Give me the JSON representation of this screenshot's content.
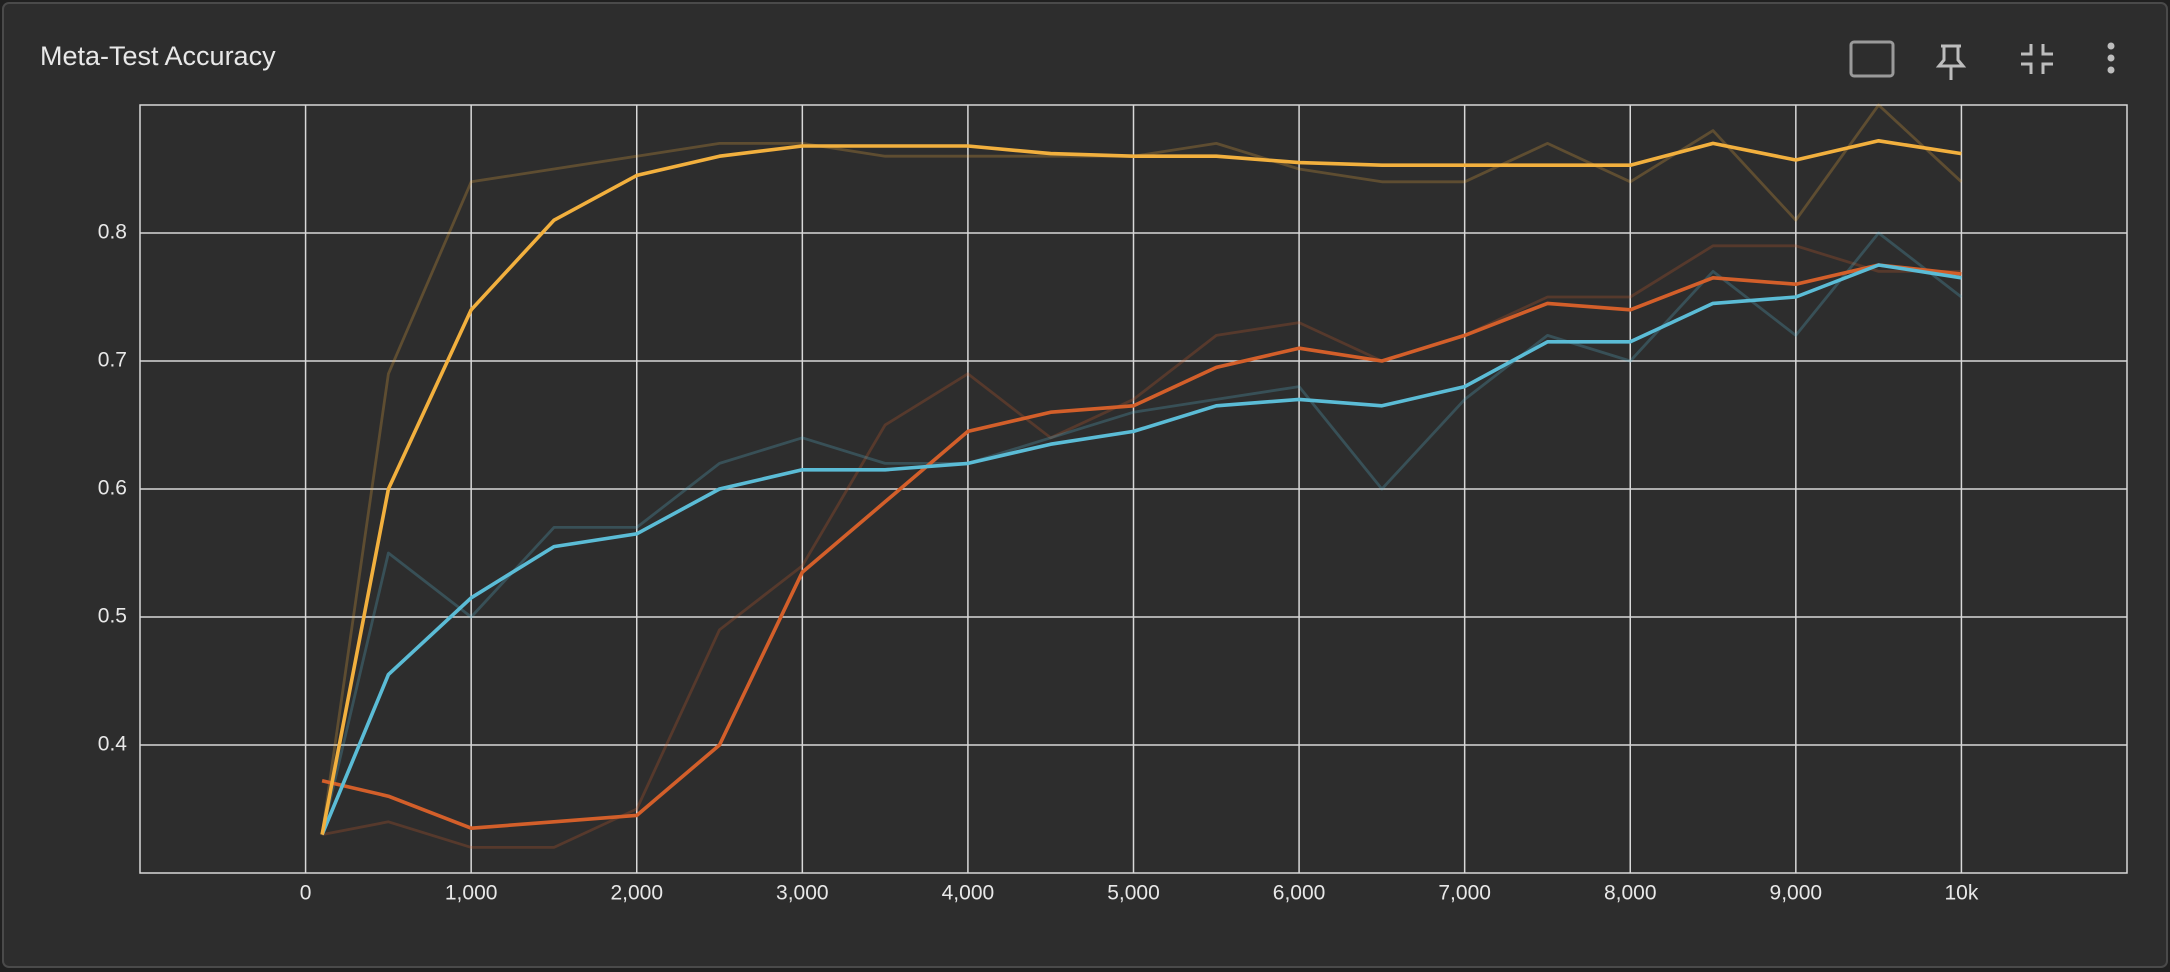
{
  "chart_data": {
    "type": "line",
    "title": "Meta-Test Accuracy",
    "x": [
      100,
      500,
      1000,
      1500,
      2000,
      2500,
      3000,
      3500,
      4000,
      4500,
      5000,
      5500,
      6000,
      6500,
      7000,
      7500,
      8000,
      8500,
      9000,
      9500,
      10000
    ],
    "series": [
      {
        "color": "#f2b03e",
        "opacity": 0.25,
        "values": [
          0.33,
          0.69,
          0.84,
          0.85,
          0.86,
          0.87,
          0.87,
          0.86,
          0.86,
          0.86,
          0.86,
          0.87,
          0.85,
          0.84,
          0.84,
          0.87,
          0.84,
          0.88,
          0.81,
          0.9,
          0.84
        ]
      },
      {
        "color": "#d35f2a",
        "opacity": 0.25,
        "values": [
          0.33,
          0.34,
          0.32,
          0.32,
          0.35,
          0.49,
          0.54,
          0.65,
          0.69,
          0.64,
          0.67,
          0.72,
          0.73,
          0.7,
          0.72,
          0.75,
          0.75,
          0.79,
          0.79,
          0.77,
          0.77
        ]
      },
      {
        "color": "#5bbcd6",
        "opacity": 0.25,
        "values": [
          0.33,
          0.55,
          0.5,
          0.57,
          0.57,
          0.62,
          0.64,
          0.62,
          0.62,
          0.64,
          0.66,
          0.67,
          0.68,
          0.6,
          0.67,
          0.72,
          0.7,
          0.77,
          0.72,
          0.8,
          0.75
        ]
      },
      {
        "color": "#d35f2a",
        "opacity": 1,
        "values": [
          0.372,
          0.36,
          0.335,
          0.34,
          0.345,
          0.4,
          0.535,
          0.59,
          0.645,
          0.66,
          0.665,
          0.695,
          0.71,
          0.7,
          0.72,
          0.745,
          0.74,
          0.765,
          0.76,
          0.775,
          0.768
        ]
      },
      {
        "color": "#5bbcd6",
        "opacity": 1,
        "values": [
          0.33,
          0.455,
          0.515,
          0.555,
          0.565,
          0.6,
          0.615,
          0.615,
          0.62,
          0.635,
          0.645,
          0.665,
          0.67,
          0.665,
          0.68,
          0.715,
          0.715,
          0.745,
          0.75,
          0.775,
          0.765
        ]
      },
      {
        "color": "#f2b03e",
        "opacity": 1,
        "values": [
          0.33,
          0.6,
          0.74,
          0.81,
          0.845,
          0.86,
          0.868,
          0.868,
          0.868,
          0.862,
          0.86,
          0.86,
          0.855,
          0.853,
          0.853,
          0.853,
          0.853,
          0.87,
          0.857,
          0.872,
          0.862
        ]
      }
    ],
    "xlim": [
      -1000,
      11000
    ],
    "ylim": [
      0.3,
      0.9
    ],
    "xticks": [
      0,
      {
        "value": 1000,
        "label": "1,000"
      },
      {
        "value": 2000,
        "label": "2,000"
      },
      {
        "value": 3000,
        "label": "3,000"
      },
      {
        "value": 4000,
        "label": "4,000"
      },
      {
        "value": 5000,
        "label": "5,000"
      },
      {
        "value": 6000,
        "label": "6,000"
      },
      {
        "value": 7000,
        "label": "7,000"
      },
      {
        "value": 8000,
        "label": "8,000"
      },
      {
        "value": 9000,
        "label": "9,000"
      },
      {
        "value": 10000,
        "label": "10k"
      }
    ],
    "yticks": [
      0.4,
      0.5,
      0.6,
      0.7,
      0.8
    ],
    "grid": true
  }
}
